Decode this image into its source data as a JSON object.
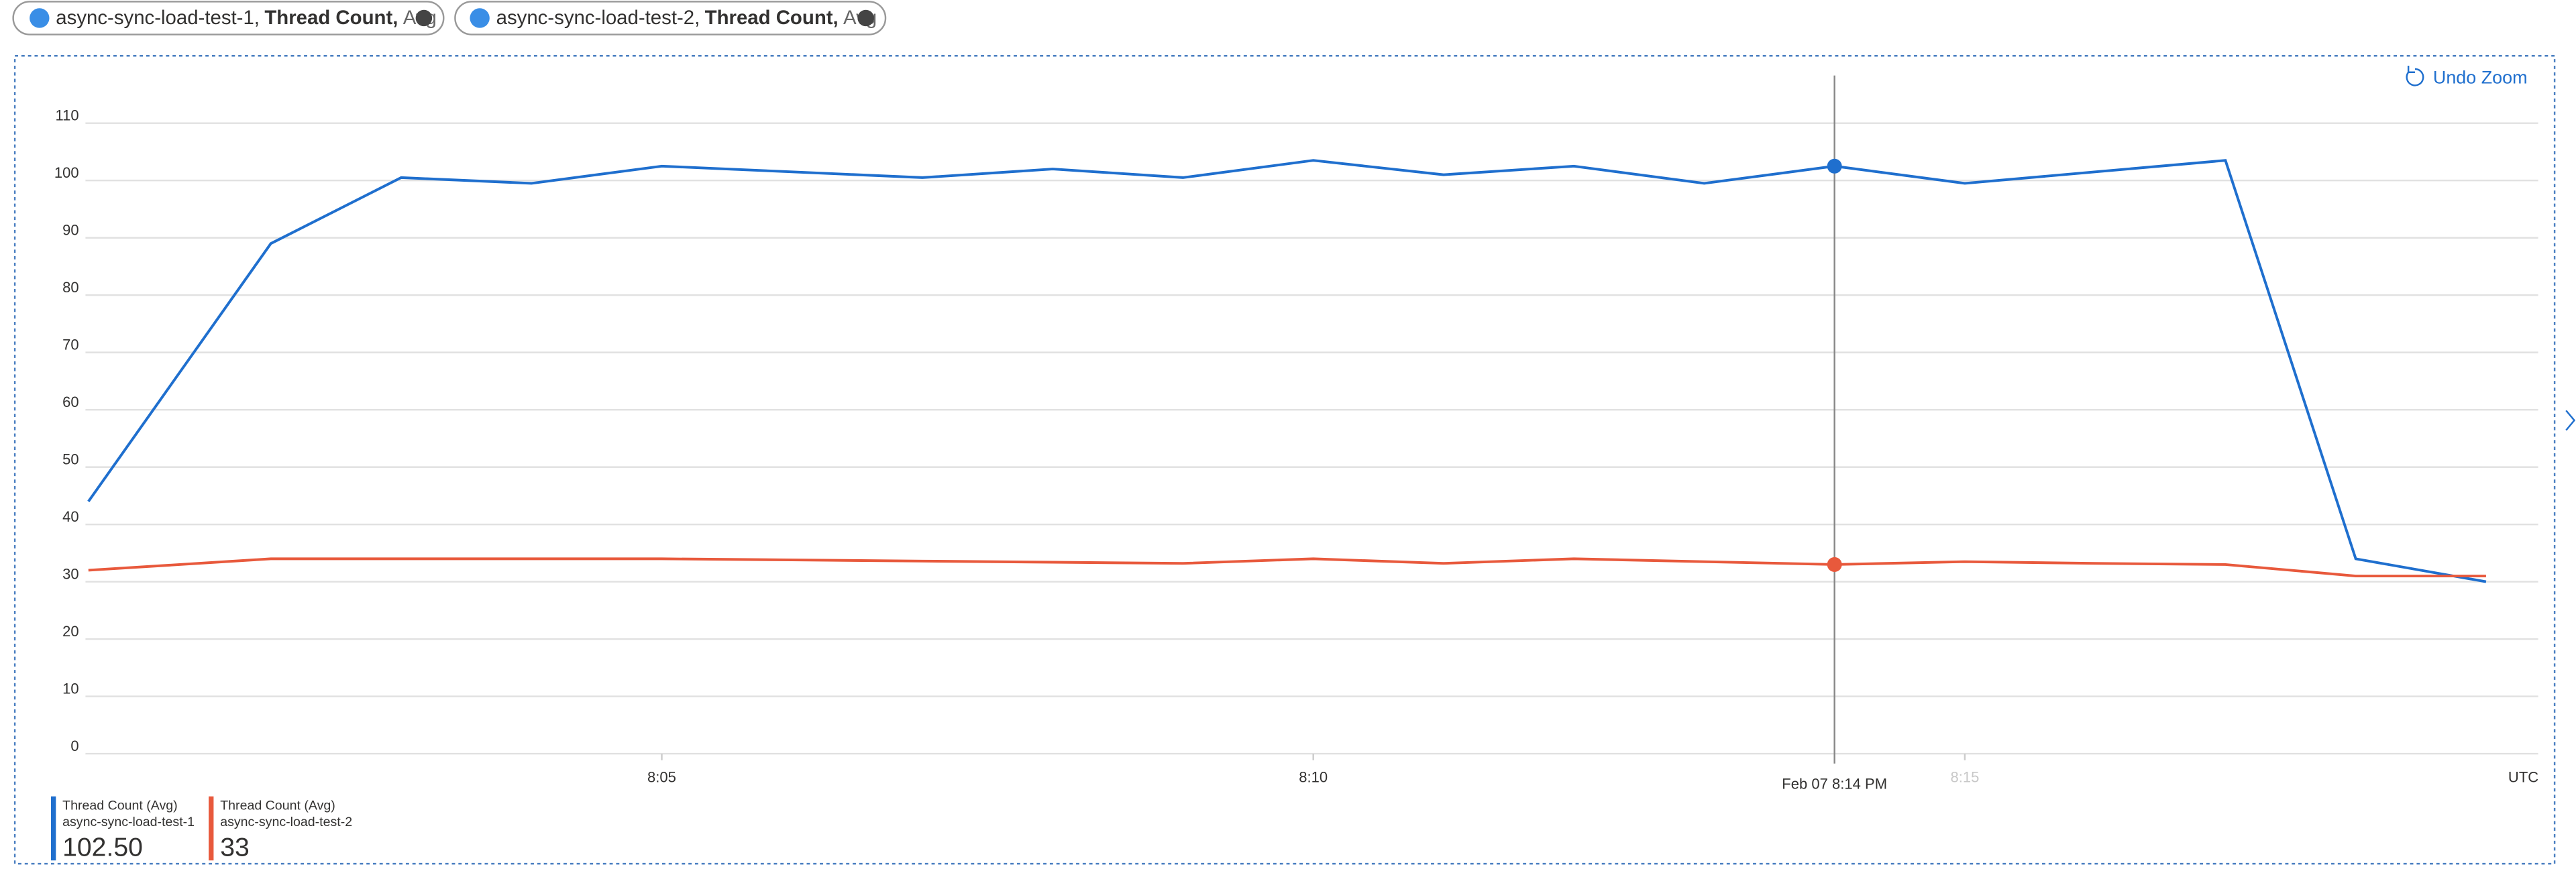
{
  "chips": [
    {
      "resource": "async-sync-load-test-1,",
      "metric": "Thread Count,",
      "agg": "Avg"
    },
    {
      "resource": "async-sync-load-test-2,",
      "metric": "Thread Count,",
      "agg": "Avg"
    }
  ],
  "undo_zoom": "Undo Zoom",
  "chart_data": {
    "type": "line",
    "x": [
      0.6,
      2,
      3,
      4,
      5,
      6,
      7,
      8,
      9,
      10,
      11,
      12,
      13,
      14,
      15,
      16,
      17,
      18,
      19
    ],
    "xlim": [
      0.3,
      19.4
    ],
    "xticks": [
      {
        "value": 5,
        "label": "8:05"
      },
      {
        "value": 10,
        "label": "8:10"
      },
      {
        "value": 15,
        "label": "8:15"
      }
    ],
    "x_unit_label": "UTC",
    "ylim": [
      0,
      110
    ],
    "yticks": [
      0,
      10,
      20,
      30,
      40,
      50,
      60,
      70,
      80,
      90,
      100,
      110
    ],
    "grid": true,
    "cursor": {
      "x": 14,
      "label": "Feb 07 8:14 PM"
    },
    "series": [
      {
        "name": "Thread Count (Avg)",
        "resource": "async-sync-load-test-1",
        "color": "#1f6fce",
        "values": [
          44,
          89,
          100.5,
          99.5,
          102.5,
          101.5,
          100.5,
          102,
          100.5,
          103.5,
          101,
          102.5,
          99.5,
          102.5,
          99.5,
          101.5,
          103.5,
          34,
          30
        ],
        "current_value": {
          "value": 102.5,
          "label": "102.50"
        }
      },
      {
        "name": "Thread Count (Avg)",
        "resource": "async-sync-load-test-2",
        "color": "#e8593c",
        "values": [
          32,
          34,
          34,
          34,
          34,
          33.8,
          33.6,
          33.4,
          33.2,
          34,
          33.2,
          34,
          33.5,
          33,
          33.5,
          33.2,
          33,
          31,
          31
        ],
        "current_value": {
          "value": 33,
          "label": "33"
        }
      }
    ]
  }
}
